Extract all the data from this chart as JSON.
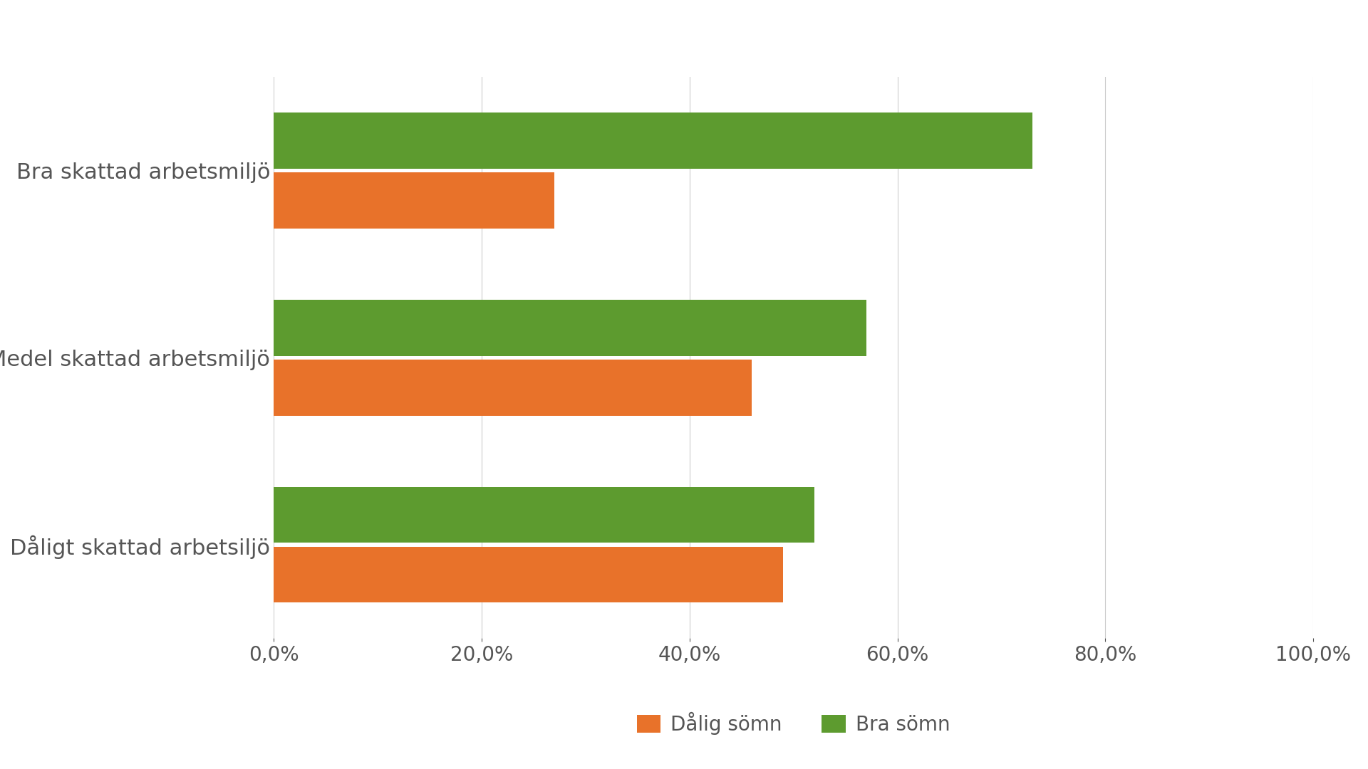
{
  "categories": [
    "Bra skattad arbetsmiljö",
    "Medel skattad arbetsmiljö",
    "Dåligt skattad arbetsiljö"
  ],
  "dalig_somn": [
    0.27,
    0.46,
    0.49
  ],
  "bra_somn": [
    0.73,
    0.57,
    0.52
  ],
  "color_dalig": "#E8722A",
  "color_bra": "#5D9B2F",
  "legend_dalig": "Dålig sömn",
  "legend_bra": "Bra sömn",
  "xlim": [
    0,
    1.0
  ],
  "xticks": [
    0.0,
    0.2,
    0.4,
    0.6,
    0.8,
    1.0
  ],
  "background_color": "#ffffff",
  "text_color": "#555555",
  "bar_height": 0.3,
  "bar_gap": 0.02,
  "grid_color": "#cccccc",
  "tick_label_fontsize": 20,
  "category_fontsize": 22,
  "legend_fontsize": 20
}
